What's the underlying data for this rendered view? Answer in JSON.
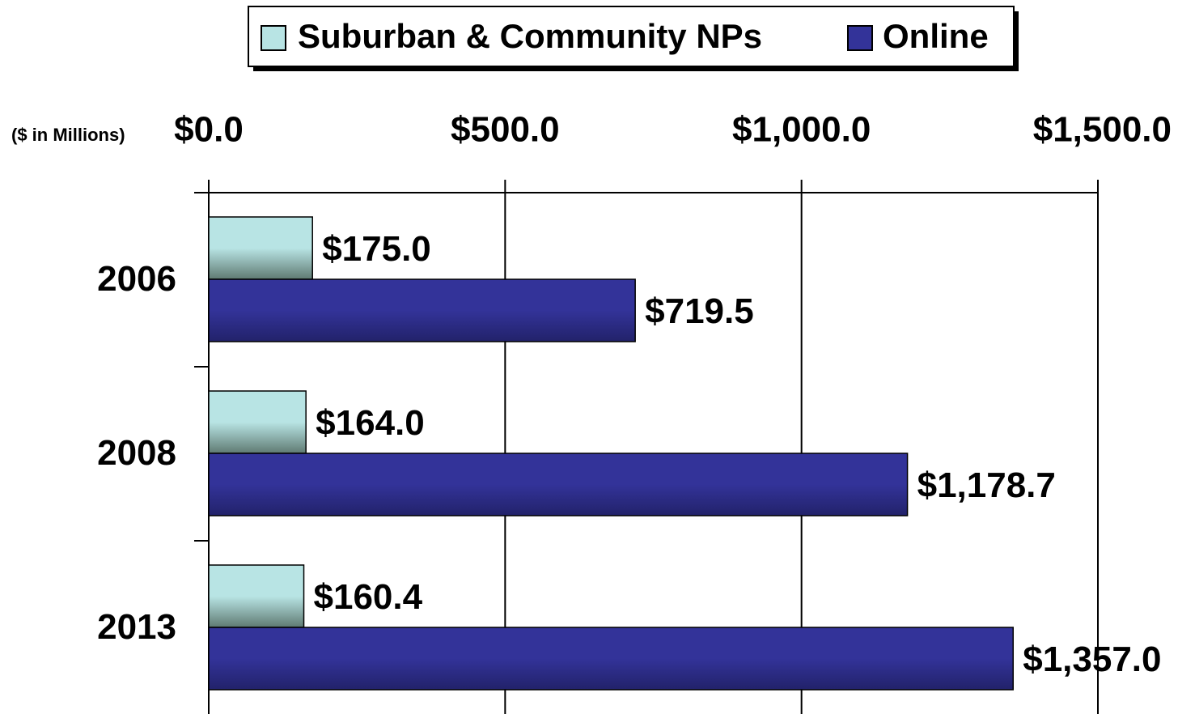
{
  "chart_data": {
    "type": "hbar",
    "axis_note": "($ in Millions)",
    "categories": [
      "2006",
      "2008",
      "2013"
    ],
    "series": [
      {
        "name": "Suburban & Community NPs",
        "color": "#b8e4e4",
        "values": [
          175.0,
          164.0,
          160.4
        ],
        "value_labels": [
          "$175.0",
          "$164.0",
          "$160.4"
        ]
      },
      {
        "name": "Online",
        "color": "#333399",
        "values": [
          719.5,
          1178.7,
          1357.0
        ],
        "value_labels": [
          "$719.5",
          "$1,178.7",
          "$1,357.0"
        ]
      }
    ],
    "xlim": [
      0,
      1500
    ],
    "xticks": [
      {
        "value": 0,
        "label": "$0.0"
      },
      {
        "value": 500,
        "label": "$500.0"
      },
      {
        "value": 1000,
        "label": "$1,000.0"
      },
      {
        "value": 1500,
        "label": "$1,500.0"
      }
    ],
    "grid": true,
    "legend": "top"
  }
}
